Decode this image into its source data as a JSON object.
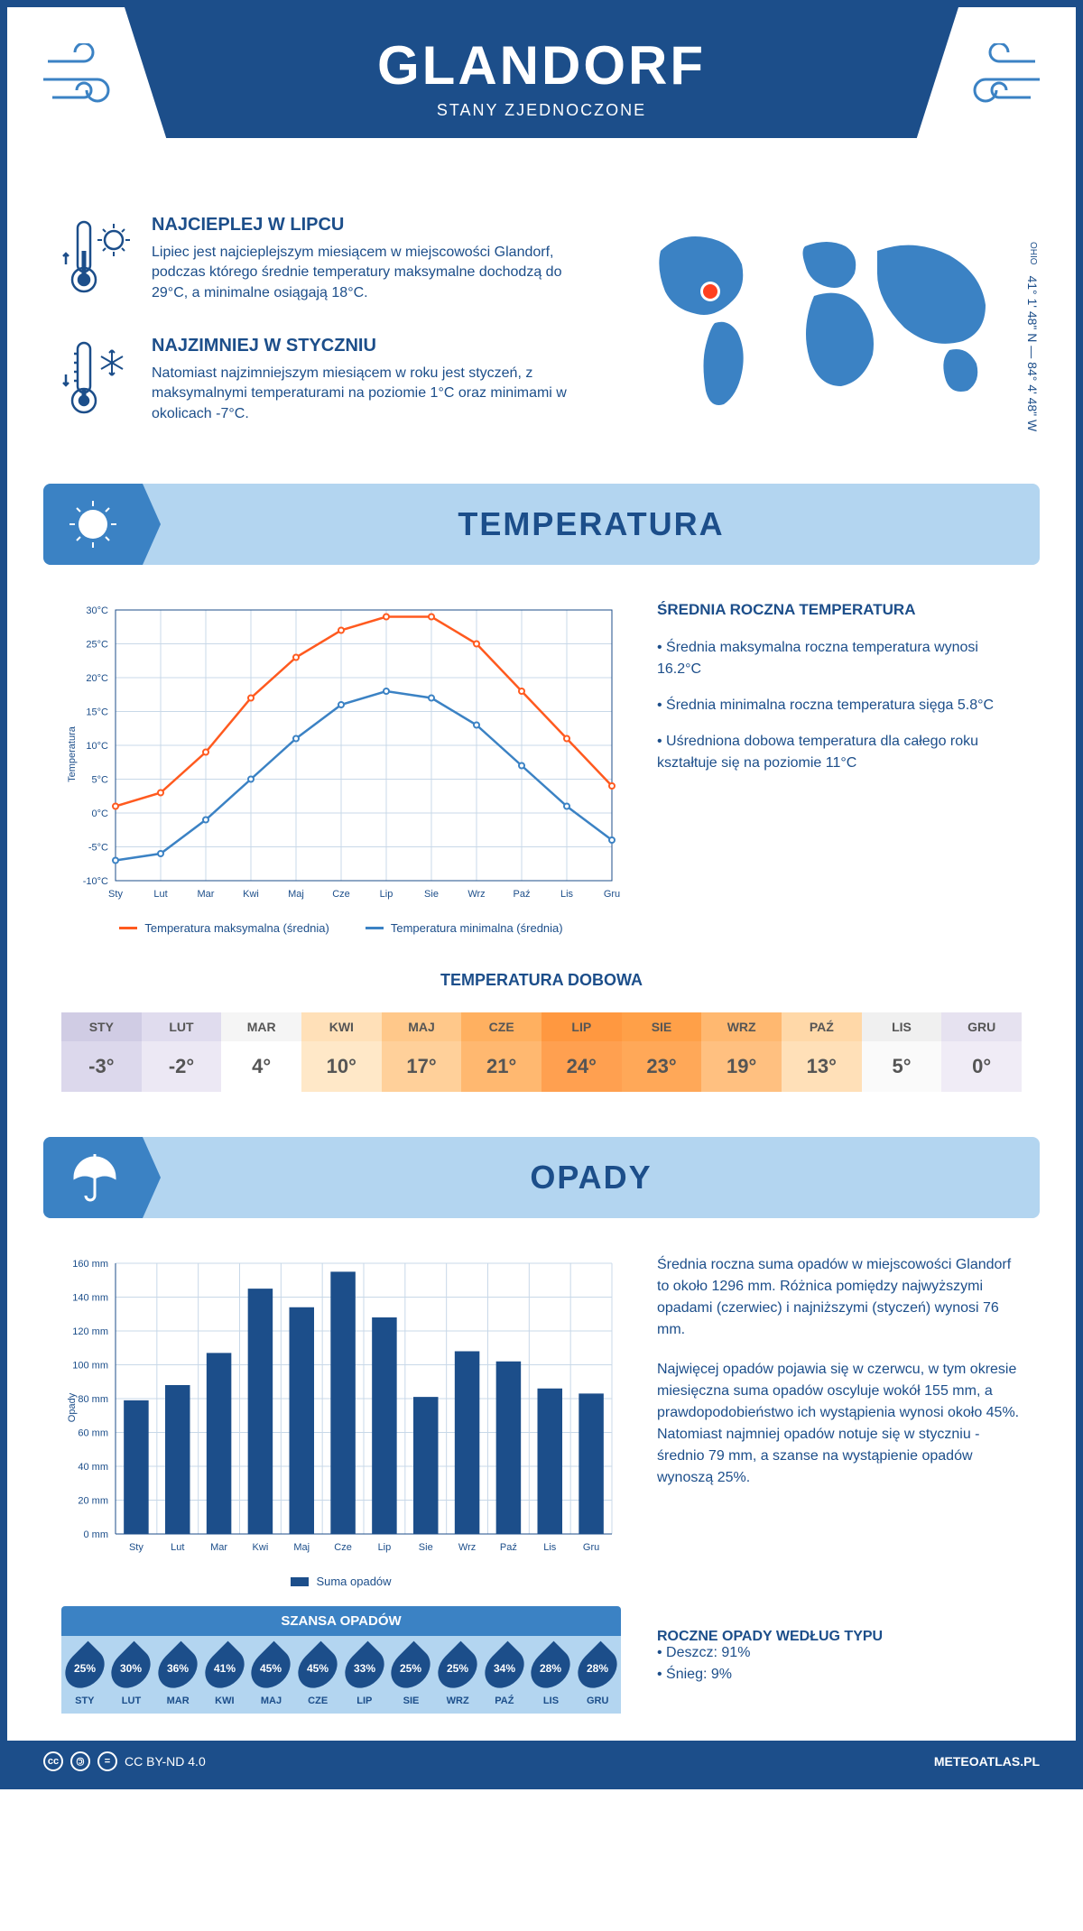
{
  "header": {
    "title": "GLANDORF",
    "subtitle": "STANY ZJEDNOCZONE"
  },
  "intro": {
    "hot": {
      "title": "NAJCIEPLEJ W LIPCU",
      "text": "Lipiec jest najcieplejszym miesiącem w miejscowości Glandorf, podczas którego średnie temperatury maksymalne dochodzą do 29°C, a minimalne osiągają 18°C."
    },
    "cold": {
      "title": "NAJZIMNIEJ W STYCZNIU",
      "text": "Natomiast najzimniejszym miesiącem w roku jest styczeń, z maksymalnymi temperaturami na poziomie 1°C oraz minimami w okolicach -7°C."
    },
    "coords": "41° 1' 48\" N — 84° 4' 48\" W",
    "state": "OHIO"
  },
  "temperature_section": {
    "title": "TEMPERATURA",
    "chart": {
      "months": [
        "Sty",
        "Lut",
        "Mar",
        "Kwi",
        "Maj",
        "Cze",
        "Lip",
        "Sie",
        "Wrz",
        "Paź",
        "Lis",
        "Gru"
      ],
      "max_series": [
        1,
        3,
        9,
        17,
        23,
        27,
        29,
        29,
        25,
        18,
        11,
        4
      ],
      "min_series": [
        -7,
        -6,
        -1,
        5,
        11,
        16,
        18,
        17,
        13,
        7,
        1,
        -4
      ],
      "max_color": "#ff5a1f",
      "min_color": "#3b82c4",
      "ylabel": "Temperatura",
      "ymin": -10,
      "ymax": 30,
      "ystep": 5,
      "grid_color": "#c8d8e8",
      "legend_max": "Temperatura maksymalna (średnia)",
      "legend_min": "Temperatura minimalna (średnia)"
    },
    "annual": {
      "title": "ŚREDNIA ROCZNA TEMPERATURA",
      "items": [
        "• Średnia maksymalna roczna temperatura wynosi 16.2°C",
        "• Średnia minimalna roczna temperatura sięga 5.8°C",
        "• Uśredniona dobowa temperatura dla całego roku kształtuje się na poziomie 11°C"
      ]
    },
    "daily": {
      "title": "TEMPERATURA DOBOWA",
      "months": [
        "STY",
        "LUT",
        "MAR",
        "KWI",
        "MAJ",
        "CZE",
        "LIP",
        "SIE",
        "WRZ",
        "PAŹ",
        "LIS",
        "GRU"
      ],
      "values": [
        "-3°",
        "-2°",
        "4°",
        "10°",
        "17°",
        "21°",
        "24°",
        "23°",
        "19°",
        "13°",
        "5°",
        "0°"
      ],
      "header_colors": [
        "#d0cce4",
        "#e0dcee",
        "#f5f5f5",
        "#ffe0b8",
        "#ffc88a",
        "#ffb060",
        "#ff9840",
        "#ffa048",
        "#ffb870",
        "#ffd8a8",
        "#f0f0f0",
        "#e6e2f0"
      ],
      "value_colors": [
        "#dcd8ec",
        "#ece8f4",
        "#ffffff",
        "#ffe8c8",
        "#ffd09a",
        "#ffb870",
        "#ffa050",
        "#ffa858",
        "#ffc080",
        "#ffe0b8",
        "#fafafa",
        "#f0ecf6"
      ]
    }
  },
  "precipitation_section": {
    "title": "OPADY",
    "chart": {
      "months": [
        "Sty",
        "Lut",
        "Mar",
        "Kwi",
        "Maj",
        "Cze",
        "Lip",
        "Sie",
        "Wrz",
        "Paź",
        "Lis",
        "Gru"
      ],
      "values": [
        79,
        88,
        107,
        145,
        134,
        155,
        128,
        81,
        108,
        102,
        86,
        83
      ],
      "bar_color": "#1c4e8a",
      "ylabel": "Opady",
      "ymin": 0,
      "ymax": 160,
      "ystep": 20,
      "grid_color": "#c8d8e8",
      "legend": "Suma opadów"
    },
    "text1": "Średnia roczna suma opadów w miejscowości Glandorf to około 1296 mm. Różnica pomiędzy najwyższymi opadami (czerwiec) i najniższymi (styczeń) wynosi 76 mm.",
    "text2": "Najwięcej opadów pojawia się w czerwcu, w tym okresie miesięczna suma opadów oscyluje wokół 155 mm, a prawdopodobieństwo ich wystąpienia wynosi około 45%. Natomiast najmniej opadów notuje się w styczniu - średnio 79 mm, a szanse na wystąpienie opadów wynoszą 25%.",
    "chance": {
      "title": "SZANSA OPADÓW",
      "months": [
        "STY",
        "LUT",
        "MAR",
        "KWI",
        "MAJ",
        "CZE",
        "LIP",
        "SIE",
        "WRZ",
        "PAŹ",
        "LIS",
        "GRU"
      ],
      "values": [
        "25%",
        "30%",
        "36%",
        "41%",
        "45%",
        "45%",
        "33%",
        "25%",
        "25%",
        "34%",
        "28%",
        "28%"
      ]
    },
    "types": {
      "title": "ROCZNE OPADY WEDŁUG TYPU",
      "items": [
        "• Deszcz: 91%",
        "• Śnieg: 9%"
      ]
    }
  },
  "footer": {
    "license": "CC BY-ND 4.0",
    "site": "METEOATLAS.PL"
  }
}
